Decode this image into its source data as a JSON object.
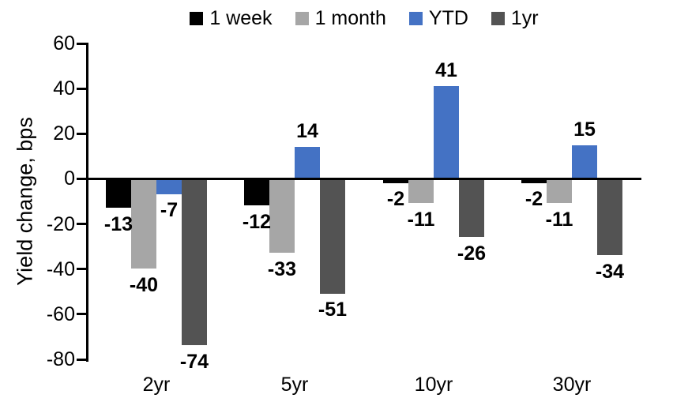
{
  "chart_data": {
    "type": "bar",
    "title": "",
    "ylabel": "Yield change, bps",
    "xlabel": "",
    "categories": [
      "2yr",
      "5yr",
      "10yr",
      "30yr"
    ],
    "series": [
      {
        "name": "1 week",
        "color": "#000000",
        "values": [
          -13,
          -12,
          -2,
          -2
        ]
      },
      {
        "name": "1 month",
        "color": "#A6A6A6",
        "values": [
          -40,
          -33,
          -11,
          -11
        ]
      },
      {
        "name": "YTD",
        "color": "#4472C4",
        "values": [
          -7,
          14,
          41,
          15
        ]
      },
      {
        "name": "1yr",
        "color": "#535353",
        "values": [
          -74,
          -51,
          -26,
          -34
        ]
      }
    ],
    "ylim": [
      -80,
      60
    ],
    "yticks": [
      60,
      40,
      20,
      0,
      -20,
      -40,
      -60,
      -80
    ],
    "grid": "off",
    "legend_position": "top",
    "axis_color": "#000000",
    "label_position": "outside-end"
  }
}
